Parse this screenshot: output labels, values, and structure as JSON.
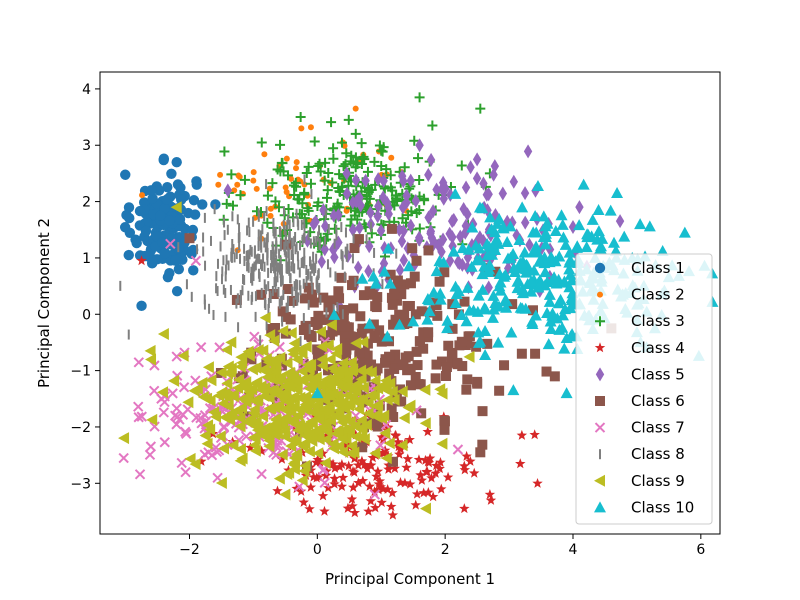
{
  "chart_data": {
    "type": "scatter",
    "xlabel": "Principal Component 1",
    "ylabel": "Principal Component 2",
    "xlim": [
      -3.4,
      6.3
    ],
    "ylim": [
      -3.9,
      4.3
    ],
    "xticks": [
      -2,
      0,
      2,
      4,
      6
    ],
    "yticks": [
      -3,
      -2,
      -1,
      0,
      1,
      2,
      3,
      4
    ],
    "xtick_labels": [
      "−2",
      "0",
      "2",
      "4",
      "6"
    ],
    "ytick_labels": [
      "−3",
      "−2",
      "−1",
      "0",
      "1",
      "2",
      "3",
      "4"
    ],
    "grid": false,
    "legend_position": "lower-right",
    "series": [
      {
        "name": "Class 1",
        "color": "#1f77b4",
        "marker": "circle",
        "center": [
          -2.4,
          1.6
        ],
        "spread": [
          0.25,
          0.45
        ],
        "count": 160,
        "points": [
          [
            -2.95,
            1.05
          ],
          [
            -2.75,
            0.15
          ],
          [
            -2.2,
            2.7
          ],
          [
            -2.6,
            2.2
          ],
          [
            -1.8,
            1.95
          ]
        ]
      },
      {
        "name": "Class 2",
        "color": "#ff7f0e",
        "marker": "small-circle",
        "center": [
          -0.2,
          2.3
        ],
        "spread": [
          0.9,
          0.45
        ],
        "count": 55,
        "points": [
          [
            0.6,
            3.65
          ],
          [
            -0.25,
            3.3
          ],
          [
            -0.1,
            3.32
          ],
          [
            0.4,
            3.05
          ],
          [
            -1.3,
            2.2
          ]
        ]
      },
      {
        "name": "Class 3",
        "color": "#2ca02c",
        "marker": "plus",
        "center": [
          0.6,
          2.1
        ],
        "spread": [
          0.8,
          0.5
        ],
        "count": 230,
        "points": [
          [
            1.6,
            3.85
          ],
          [
            2.55,
            3.65
          ],
          [
            1.8,
            3.35
          ],
          [
            2.7,
            2.5
          ],
          [
            -0.6,
            1.9
          ]
        ]
      },
      {
        "name": "Class 4",
        "color": "#d62728",
        "marker": "star",
        "center": [
          0.8,
          -2.6
        ],
        "spread": [
          0.9,
          0.45
        ],
        "count": 170,
        "points": [
          [
            0.8,
            -3.5
          ],
          [
            2.3,
            -3.45
          ],
          [
            3.2,
            -2.15
          ],
          [
            2.7,
            -3.2
          ],
          [
            -2.75,
            0.95
          ]
        ]
      },
      {
        "name": "Class 5",
        "color": "#9467bd",
        "marker": "diamond",
        "center": [
          1.9,
          1.5
        ],
        "spread": [
          1.0,
          0.55
        ],
        "count": 160,
        "points": [
          [
            2.5,
            2.75
          ],
          [
            1.6,
            3.0
          ],
          [
            3.25,
            2.15
          ],
          [
            4.0,
            1.55
          ],
          [
            -1.4,
            2.2
          ]
        ]
      },
      {
        "name": "Class 6",
        "color": "#8c564b",
        "marker": "square",
        "center": [
          0.8,
          -0.6
        ],
        "spread": [
          1.0,
          0.75
        ],
        "count": 270,
        "points": [
          [
            2.55,
            -2.45
          ],
          [
            3.2,
            -0.7
          ],
          [
            -2.0,
            1.35
          ],
          [
            2.5,
            -1.2
          ],
          [
            4.6,
            -0.25
          ]
        ]
      },
      {
        "name": "Class 7",
        "color": "#e377c2",
        "marker": "x",
        "center": [
          -0.8,
          -1.7
        ],
        "spread": [
          0.9,
          0.5
        ],
        "count": 220,
        "points": [
          [
            -2.3,
            1.25
          ],
          [
            2.2,
            -2.4
          ],
          [
            -2.2,
            -0.75
          ],
          [
            0.9,
            -3.2
          ],
          [
            -1.9,
            0.95
          ]
        ]
      },
      {
        "name": "Class 8",
        "color": "#7f7f7f",
        "marker": "vline",
        "center": [
          -0.6,
          0.9
        ],
        "spread": [
          0.6,
          0.45
        ],
        "count": 320,
        "points": [
          [
            -1.4,
            1.5
          ],
          [
            0.3,
            1.4
          ],
          [
            -0.3,
            0.3
          ],
          [
            -1.2,
            0.2
          ],
          [
            0.4,
            0.0
          ]
        ]
      },
      {
        "name": "Class 9",
        "color": "#bcbd22",
        "marker": "triangle-left",
        "center": [
          -0.3,
          -1.6
        ],
        "spread": [
          0.85,
          0.6
        ],
        "count": 420,
        "points": [
          [
            -2.2,
            1.9
          ],
          [
            -0.5,
            -3.2
          ],
          [
            1.7,
            -3.45
          ],
          [
            -1.2,
            -2.6
          ],
          [
            -2.4,
            -0.35
          ]
        ]
      },
      {
        "name": "Class 10",
        "color": "#17becf",
        "marker": "triangle-up",
        "center": [
          3.6,
          0.6
        ],
        "spread": [
          1.1,
          0.6
        ],
        "count": 300,
        "points": [
          [
            4.4,
            1.85
          ],
          [
            5.05,
            1.6
          ],
          [
            5.75,
            1.45
          ],
          [
            3.9,
            -1.4
          ],
          [
            0.0,
            -1.4
          ]
        ]
      }
    ]
  }
}
